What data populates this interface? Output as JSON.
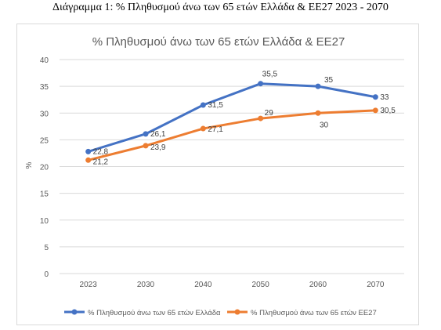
{
  "caption": "Διάγραμμα 1: % Πληθυσμού άνω των 65 ετών Ελλάδα & ΕΕ27 2023 - 2070",
  "chart_data": {
    "type": "line",
    "title": "% Πληθυσμού άνω των 65 ετών Ελλάδα & ΕΕ27",
    "ylabel": "%",
    "xlabel": "",
    "categories": [
      "2023",
      "2030",
      "2040",
      "2050",
      "2060",
      "2070"
    ],
    "ylim": [
      0,
      40
    ],
    "yticks": [
      0,
      5,
      10,
      15,
      20,
      25,
      30,
      35,
      40
    ],
    "grid": true,
    "legend": "bottom",
    "series": [
      {
        "name": "% Πληθυσμού άνω των 65 ετών Ελλάδα",
        "color": "#4472c4",
        "values": [
          22.8,
          26.1,
          31.5,
          35.5,
          35,
          33
        ],
        "labels": [
          "22,8",
          "26,1",
          "31,5",
          "35,5",
          "35",
          "33"
        ]
      },
      {
        "name": "% Πληθυσμού άνω των 65 ετών ΕΕ27",
        "color": "#ed7d31",
        "values": [
          21.2,
          23.9,
          27.1,
          29,
          30,
          30.5
        ],
        "labels": [
          "21,2",
          "23,9",
          "27,1",
          "29",
          "30",
          "30,5"
        ]
      }
    ]
  }
}
